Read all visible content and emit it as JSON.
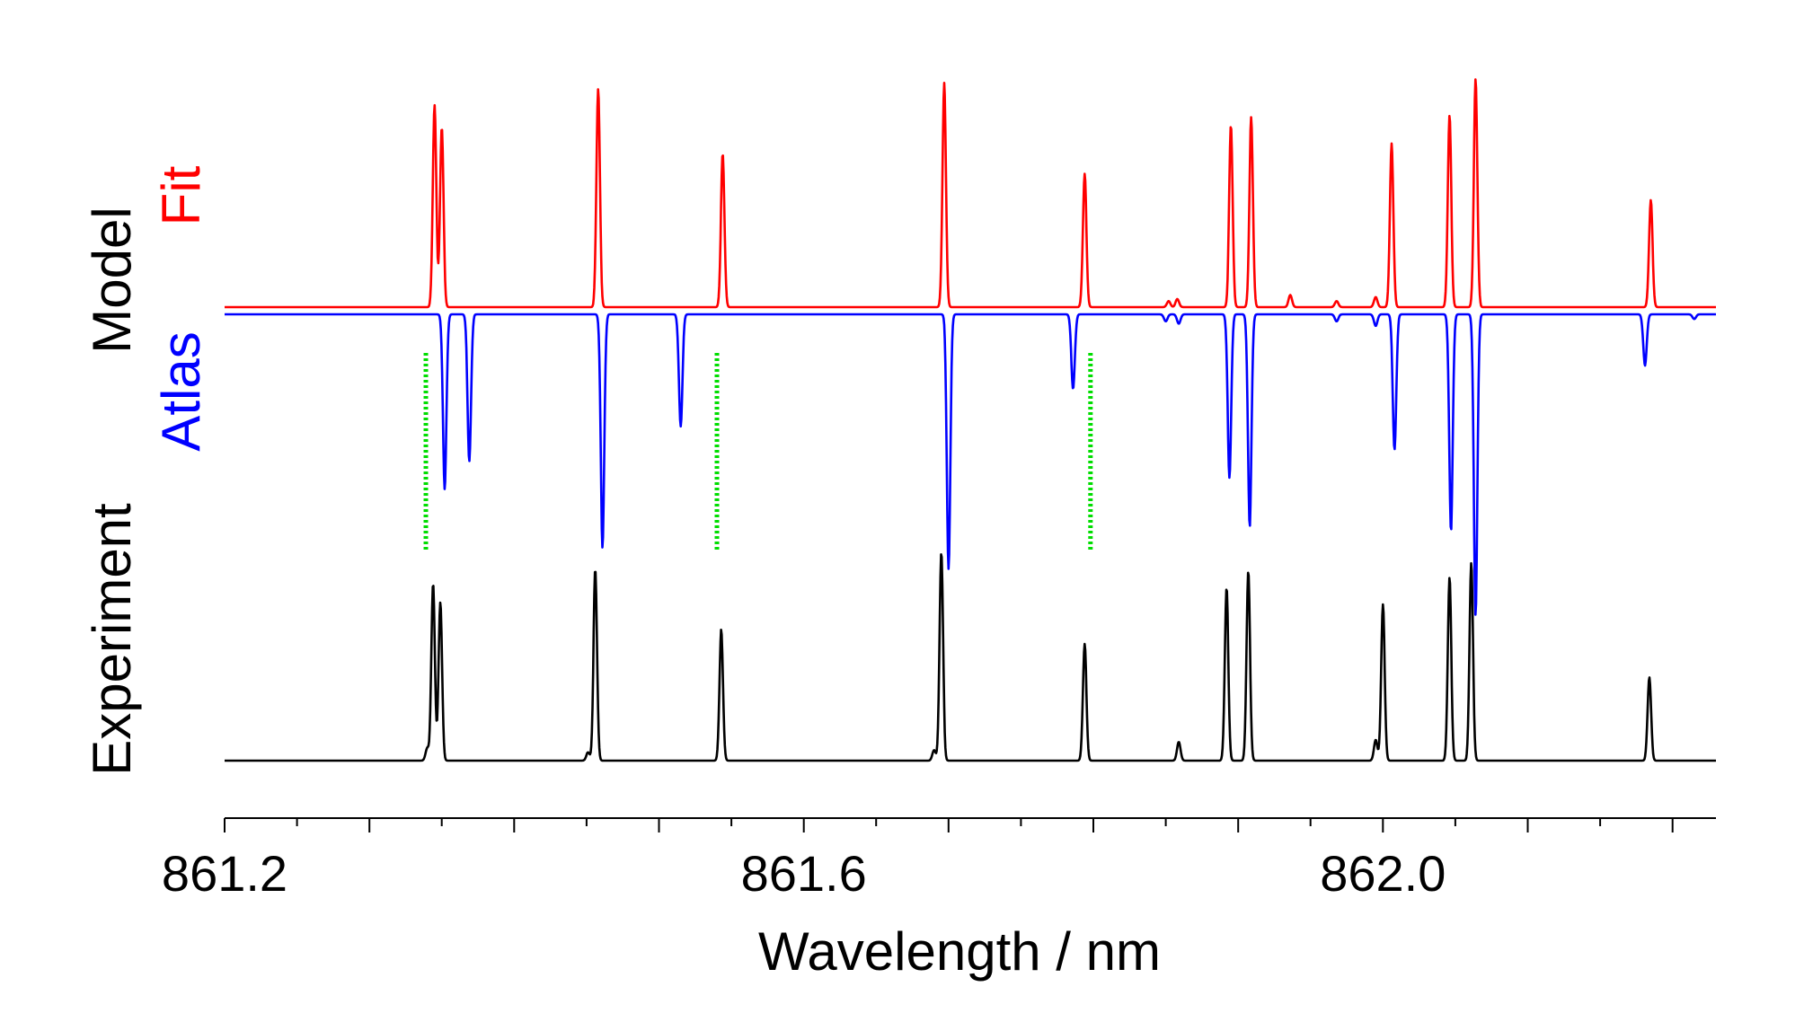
{
  "chart_data": {
    "type": "line",
    "title": "",
    "xlabel": "Wavelength / nm",
    "ylabel": "",
    "xlim": [
      861.2,
      862.23
    ],
    "xticks_major": [
      861.2,
      861.6,
      862.0
    ],
    "xtick_labels": [
      "861.2",
      "861.6",
      "862.0"
    ],
    "xticks_minor_step": 0.1,
    "grid": false,
    "legend": "none",
    "side_labels": [
      {
        "text": "Fit",
        "color": "#ff0000"
      },
      {
        "text": "Model",
        "color": "#000000"
      },
      {
        "text": "Atlas",
        "color": "#0000ff"
      },
      {
        "text": "Experiment",
        "color": "#000000"
      }
    ],
    "colors": {
      "fit": "#ff0000",
      "atlas": "#0000ff",
      "experiment": "#000000",
      "marker": "#00dd00"
    },
    "line_width": 0.0012,
    "series": [
      {
        "name": "Fit",
        "direction": "up",
        "baseline": 0,
        "peaks": [
          [
            861.345,
            1.0
          ],
          [
            861.35,
            0.89
          ],
          [
            861.458,
            1.08
          ],
          [
            861.544,
            0.76
          ],
          [
            861.697,
            1.11
          ],
          [
            861.794,
            0.66
          ],
          [
            861.852,
            0.03
          ],
          [
            861.858,
            0.04
          ],
          [
            861.895,
            0.9
          ],
          [
            861.909,
            0.94
          ],
          [
            861.936,
            0.06
          ],
          [
            861.968,
            0.03
          ],
          [
            861.995,
            0.05
          ],
          [
            862.006,
            0.81
          ],
          [
            862.046,
            0.95
          ],
          [
            862.064,
            1.13
          ],
          [
            862.185,
            0.53
          ]
        ]
      },
      {
        "name": "Atlas",
        "direction": "down",
        "baseline": 0,
        "peaks": [
          [
            861.352,
            0.75
          ],
          [
            861.369,
            0.63
          ],
          [
            861.461,
            1.0
          ],
          [
            861.515,
            0.48
          ],
          [
            861.7,
            1.09
          ],
          [
            861.786,
            0.32
          ],
          [
            861.85,
            0.03
          ],
          [
            861.859,
            0.04
          ],
          [
            861.894,
            0.7
          ],
          [
            861.908,
            0.91
          ],
          [
            861.968,
            0.03
          ],
          [
            861.995,
            0.05
          ],
          [
            862.008,
            0.58
          ],
          [
            862.047,
            0.93
          ],
          [
            862.064,
            1.29
          ],
          [
            862.181,
            0.22
          ],
          [
            862.215,
            0.02
          ]
        ]
      },
      {
        "name": "Experiment",
        "direction": "up",
        "baseline": 0,
        "peaks": [
          [
            861.34,
            0.06
          ],
          [
            861.344,
            0.85
          ],
          [
            861.349,
            0.76
          ],
          [
            861.451,
            0.04
          ],
          [
            861.456,
            0.92
          ],
          [
            861.543,
            0.63
          ],
          [
            861.69,
            0.05
          ],
          [
            861.695,
            1.0
          ],
          [
            861.794,
            0.56
          ],
          [
            861.859,
            0.09
          ],
          [
            861.892,
            0.83
          ],
          [
            861.907,
            0.91
          ],
          [
            861.995,
            0.1
          ],
          [
            862.0,
            0.75
          ],
          [
            862.046,
            0.88
          ],
          [
            862.061,
            0.95
          ],
          [
            862.184,
            0.4
          ]
        ]
      }
    ],
    "markers": [
      {
        "x": 861.339,
        "label": ""
      },
      {
        "x": 861.54,
        "label": ""
      },
      {
        "x": 861.798,
        "label": ""
      }
    ]
  }
}
